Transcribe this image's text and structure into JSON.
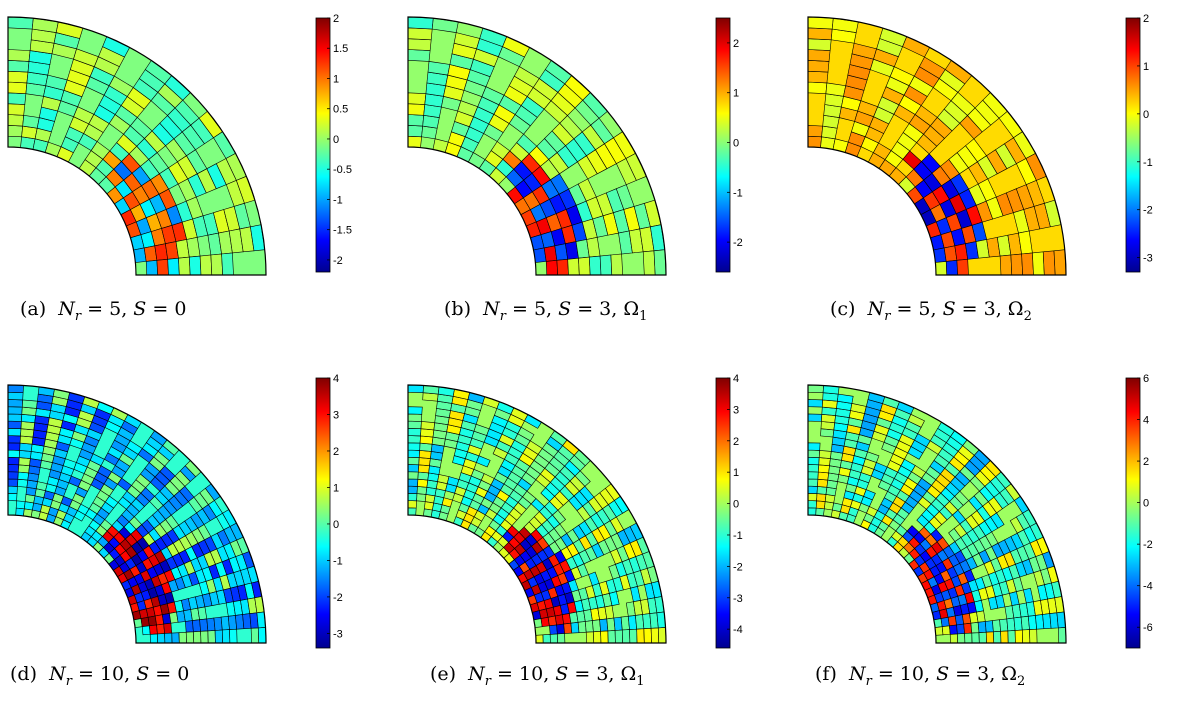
{
  "colors": {
    "jet": [
      "#00008f",
      "#0000ff",
      "#0080ff",
      "#00ffff",
      "#80ff80",
      "#ffff00",
      "#ff8000",
      "#ff0000",
      "#800000"
    ]
  },
  "panels": [
    {
      "label": "(a)",
      "caption": "N_r = 5, S = 0",
      "nr": "5",
      "s": "0",
      "omega": ""
    },
    {
      "label": "(b)",
      "caption": "N_r = 5, S = 3, Ω_1",
      "nr": "5",
      "s": "3",
      "omega": "1"
    },
    {
      "label": "(c)",
      "caption": "N_r = 5, S = 3, Ω_2",
      "nr": "5",
      "s": "3",
      "omega": "2"
    },
    {
      "label": "(d)",
      "caption": "N_r = 10, S = 0",
      "nr": "10",
      "s": "0",
      "omega": ""
    },
    {
      "label": "(e)",
      "caption": "N_r = 10, S = 3, Ω_1",
      "nr": "10",
      "s": "3",
      "omega": "1"
    },
    {
      "label": "(f)",
      "caption": "N_r = 10, S = 3, Ω_2",
      "nr": "10",
      "s": "3",
      "omega": "2"
    }
  ],
  "chart_data": [
    {
      "type": "heatmap",
      "colormap": "jet",
      "clim": [
        -2.2,
        2.0
      ],
      "colorbar_ticks": [
        "2",
        "1.5",
        "1",
        "0.5",
        "0",
        "-0.5",
        "-1",
        "-1.5",
        "-2"
      ],
      "colorbar_tick_values": [
        2,
        1.5,
        1,
        0.5,
        0,
        -0.5,
        -1,
        -1.5,
        -2
      ],
      "caption": "(a) N_r = 5, S = 0"
    },
    {
      "type": "heatmap",
      "colormap": "jet",
      "clim": [
        -2.6,
        2.5
      ],
      "colorbar_ticks": [
        "2",
        "1",
        "0",
        "-1",
        "-2"
      ],
      "colorbar_tick_values": [
        2,
        1,
        0,
        -1,
        -2
      ],
      "caption": "(b) N_r = 5, S = 3, Ω_1"
    },
    {
      "type": "heatmap",
      "colormap": "jet",
      "clim": [
        -3.3,
        2.0
      ],
      "colorbar_ticks": [
        "2",
        "1",
        "0",
        "-1",
        "-2",
        "-3"
      ],
      "colorbar_tick_values": [
        2,
        1,
        0,
        -1,
        -2,
        -3
      ],
      "caption": "(c) N_r = 5, S = 3, Ω_2"
    },
    {
      "type": "heatmap",
      "colormap": "jet",
      "clim": [
        -3.4,
        4.0
      ],
      "colorbar_ticks": [
        "4",
        "3",
        "2",
        "1",
        "0",
        "-1",
        "-2",
        "-3"
      ],
      "colorbar_tick_values": [
        4,
        3,
        2,
        1,
        0,
        -1,
        -2,
        -3
      ],
      "caption": "(d) N_r = 10, S = 0"
    },
    {
      "type": "heatmap",
      "colormap": "jet",
      "clim": [
        -4.6,
        4.0
      ],
      "colorbar_ticks": [
        "4",
        "3",
        "2",
        "1",
        "0",
        "-1",
        "-2",
        "-3",
        "-4"
      ],
      "colorbar_tick_values": [
        4,
        3,
        2,
        1,
        0,
        -1,
        -2,
        -3,
        -4
      ],
      "caption": "(e) N_r = 10, S = 3, Ω_1"
    },
    {
      "type": "heatmap",
      "colormap": "jet",
      "clim": [
        -7.0,
        6.0
      ],
      "colorbar_ticks": [
        "6",
        "4",
        "2",
        "0",
        "-2",
        "-4",
        "-6"
      ],
      "colorbar_tick_values": [
        6,
        4,
        2,
        0,
        -2,
        -4,
        -6
      ],
      "caption": "(f) N_r = 10, S = 3, Ω_2"
    }
  ]
}
